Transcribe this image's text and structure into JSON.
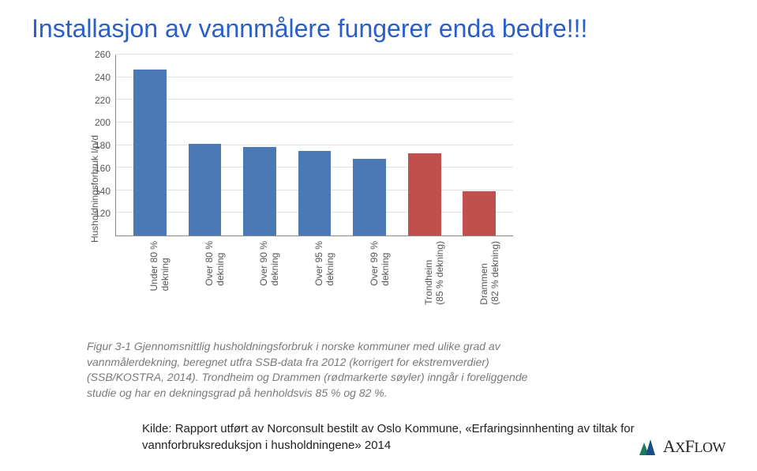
{
  "title": "Installasjon av vannmålere fungerer enda bedre!!!",
  "chart": {
    "type": "bar",
    "y_axis_label": "Husholdningsforbruk l/p/d",
    "ylim_min": 100,
    "ylim_max": 260,
    "yticks": [
      120,
      140,
      160,
      180,
      200,
      220,
      240,
      260
    ],
    "categories": [
      "Under 80 %\ndekning",
      "Over 80 %\ndekning",
      "Over 90 %\ndekning",
      "Over 95 %\ndekning",
      "Over 99 %\ndekning",
      "Trondheim\n(85 % dekning)",
      "Drammen\n(82 % dekning)"
    ],
    "values": [
      247,
      181,
      178,
      175,
      168,
      173,
      139
    ],
    "bar_colors": [
      "#4a79b6",
      "#4a79b6",
      "#4a79b6",
      "#4a79b6",
      "#4a79b6",
      "#c0504d",
      "#c0504d"
    ],
    "axis_color": "#888888",
    "grid_color": "#e1e1e1",
    "label_color": "#555555",
    "label_fontsize": 12,
    "bar_width": 0.6
  },
  "caption": "Figur 3-1 Gjennomsnittlig husholdningsforbruk i norske kommuner med ulike grad av vannmålerdekning, beregnet utfra SSB-data fra 2012 (korrigert for ekstremverdier) (SSB/KOSTRA, 2014). Trondheim og Drammen (rødmarkerte søyler) inngår i foreliggende studie og har en dekningsgrad på henholdsvis 85 % og 82 %.",
  "source": "Kilde: Rapport utført av Norconsult bestilt av Oslo Kommune, «Erfaringsinnhenting av tiltak for vannforbruksreduksjon i husholdningene» 2014",
  "logo": {
    "text": "AxFlow",
    "mark_colors": [
      "#1e7a5a",
      "#1a4f86"
    ]
  }
}
